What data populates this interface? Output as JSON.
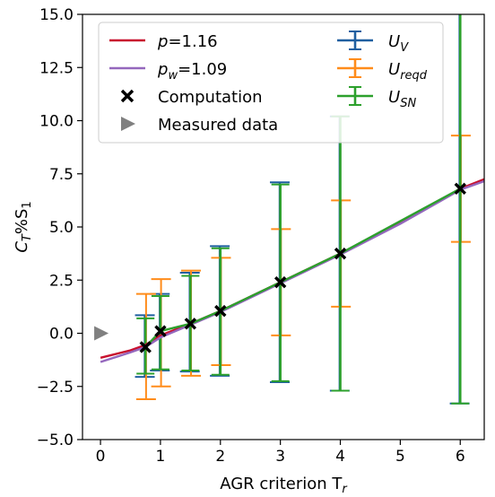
{
  "chart_data": {
    "type": "line",
    "xlabel": "AGR criterion T",
    "xlabel_sub": "r",
    "ylabel": "C",
    "ylabel_sub1": "T",
    "ylabel_mid": "%S",
    "ylabel_sub2": "1",
    "xlim": [
      -0.3,
      6.4
    ],
    "ylim": [
      -5.0,
      15.0
    ],
    "x_ticks": [
      0,
      1,
      2,
      3,
      4,
      5,
      6
    ],
    "x_tick_labels": [
      "0",
      "1",
      "2",
      "3",
      "4",
      "5",
      "6"
    ],
    "y_ticks": [
      -5.0,
      -2.5,
      0.0,
      2.5,
      5.0,
      7.5,
      10.0,
      12.5,
      15.0
    ],
    "y_tick_labels": [
      "−5.0",
      "−2.5",
      "0.0",
      "2.5",
      "5.0",
      "7.5",
      "10.0",
      "12.5",
      "15.0"
    ],
    "grid": false,
    "legend_position": "top-left",
    "legend": [
      {
        "key": "p",
        "label_main": "p",
        "label_sub": "",
        "label_rest": "=1.16",
        "kind": "line",
        "color": "#c8102e"
      },
      {
        "key": "pw",
        "label_main": "p",
        "label_sub": "w",
        "label_rest": "=1.09",
        "kind": "line",
        "color": "#9467bd"
      },
      {
        "key": "comp",
        "label_main": "Computation",
        "label_sub": "",
        "label_rest": "",
        "kind": "x-marker",
        "color": "#000000"
      },
      {
        "key": "meas",
        "label_main": "Measured data",
        "label_sub": "",
        "label_rest": "",
        "kind": "triangle",
        "color": "#808080"
      },
      {
        "key": "uv",
        "label_main": "U",
        "label_sub": "V",
        "label_rest": "",
        "kind": "errorbar",
        "color": "#1f5fa0"
      },
      {
        "key": "ureqd",
        "label_main": "U",
        "label_sub": "reqd",
        "label_rest": "",
        "kind": "errorbar",
        "color": "#ff8c1a"
      },
      {
        "key": "usn",
        "label_main": "U",
        "label_sub": "SN",
        "label_rest": "",
        "kind": "errorbar",
        "color": "#2ca02c"
      }
    ],
    "fit_lines": [
      {
        "name": "p=1.16",
        "color": "#c8102e",
        "x": [
          -0.0,
          0.5,
          0.75,
          1.0,
          1.5,
          2.0,
          3.0,
          4.0,
          5.0,
          6.0,
          6.4
        ],
        "y": [
          -1.15,
          -0.8,
          -0.55,
          -0.1,
          0.45,
          1.05,
          2.4,
          3.75,
          5.2,
          6.8,
          7.25
        ]
      },
      {
        "name": "pw=1.09",
        "color": "#9467bd",
        "x": [
          -0.0,
          0.5,
          0.75,
          1.0,
          1.5,
          2.0,
          3.0,
          4.0,
          5.0,
          6.0,
          6.4
        ],
        "y": [
          -1.35,
          -0.9,
          -0.65,
          -0.2,
          0.4,
          1.0,
          2.35,
          3.7,
          5.15,
          6.75,
          7.15
        ]
      }
    ],
    "computation": {
      "x": [
        0.75,
        1.0,
        1.5,
        2.0,
        3.0,
        4.0,
        6.0
      ],
      "y": [
        -0.65,
        0.1,
        0.45,
        1.05,
        2.4,
        3.75,
        6.8
      ]
    },
    "measured": {
      "x": [
        0.0
      ],
      "y": [
        0.0
      ]
    },
    "uncertainty": {
      "x": [
        0.75,
        1.0,
        1.5,
        2.0,
        3.0,
        4.0,
        6.0
      ],
      "uv_lower": [
        -2.05,
        -1.75,
        -1.8,
        -2.0,
        -2.3,
        -2.7,
        -3.3
      ],
      "uv_upper": [
        0.85,
        1.85,
        2.85,
        4.1,
        7.1,
        10.2,
        17.0
      ],
      "ureqd_lower": [
        -3.1,
        -2.5,
        -2.0,
        -1.5,
        -0.1,
        1.25,
        4.3
      ],
      "ureqd_upper": [
        1.85,
        2.55,
        2.95,
        3.55,
        4.9,
        6.25,
        9.3
      ],
      "usn_lower": [
        -1.9,
        -1.7,
        -1.75,
        -1.95,
        -2.25,
        -2.7,
        -3.3
      ],
      "usn_upper": [
        0.7,
        1.75,
        2.7,
        4.0,
        7.0,
        10.2,
        17.0
      ]
    },
    "colors": {
      "uv": "#1f5fa0",
      "ureqd": "#ff8c1a",
      "usn": "#2ca02c",
      "comp": "#000000",
      "meas": "#808080"
    }
  }
}
